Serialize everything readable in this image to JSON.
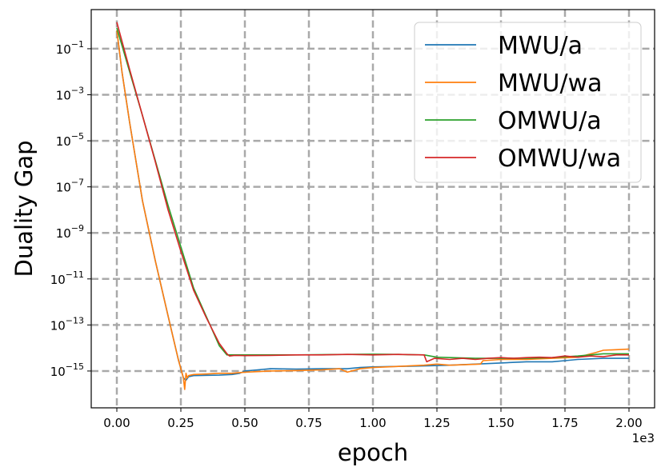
{
  "chart_data": {
    "type": "line",
    "xlabel": "epoch",
    "ylabel": "Duality Gap",
    "x_offset_label": "1e3",
    "xlim": [
      -0.1,
      2.1
    ],
    "ylim_log10": [
      -16.6,
      0.7
    ],
    "y_scale": "log",
    "grid": true,
    "legend_position": "top-right",
    "x_ticks": [
      {
        "value": 0.0,
        "label": "0.00"
      },
      {
        "value": 0.25,
        "label": "0.25"
      },
      {
        "value": 0.5,
        "label": "0.50"
      },
      {
        "value": 0.75,
        "label": "0.75"
      },
      {
        "value": 1.0,
        "label": "1.00"
      },
      {
        "value": 1.25,
        "label": "1.25"
      },
      {
        "value": 1.5,
        "label": "1.50"
      },
      {
        "value": 1.75,
        "label": "1.75"
      },
      {
        "value": 2.0,
        "label": "2.00"
      }
    ],
    "y_ticks": [
      {
        "exp": -1,
        "base": "10",
        "sup": "−1"
      },
      {
        "exp": -3,
        "base": "10",
        "sup": "−3"
      },
      {
        "exp": -5,
        "base": "10",
        "sup": "−5"
      },
      {
        "exp": -7,
        "base": "10",
        "sup": "−7"
      },
      {
        "exp": -9,
        "base": "10",
        "sup": "−9"
      },
      {
        "exp": -11,
        "base": "10",
        "sup": "−11"
      },
      {
        "exp": -13,
        "base": "10",
        "sup": "−13"
      },
      {
        "exp": -15,
        "base": "10",
        "sup": "−15"
      }
    ],
    "series": [
      {
        "name": "MWU/a",
        "color": "#1f77b4",
        "x": [
          0.0,
          0.02,
          0.05,
          0.1,
          0.15,
          0.2,
          0.24,
          0.26,
          0.27,
          0.28,
          0.3,
          0.4,
          0.45,
          0.48,
          0.5,
          0.55,
          0.6,
          0.7,
          0.8,
          0.9,
          0.95,
          1.0,
          1.1,
          1.2,
          1.3,
          1.4,
          1.5,
          1.6,
          1.7,
          1.75,
          1.8,
          1.9,
          2.0
        ],
        "log10_y": [
          -0.2,
          -2.0,
          -4.2,
          -7.6,
          -10.2,
          -12.6,
          -14.5,
          -15.3,
          -15.4,
          -15.25,
          -15.2,
          -15.18,
          -15.15,
          -15.1,
          -15.0,
          -14.95,
          -14.9,
          -14.92,
          -14.9,
          -14.9,
          -14.85,
          -14.82,
          -14.8,
          -14.78,
          -14.75,
          -14.7,
          -14.65,
          -14.6,
          -14.6,
          -14.55,
          -14.5,
          -14.45,
          -14.45
        ]
      },
      {
        "name": "MWU/wa",
        "color": "#ff7f0e",
        "x": [
          0.0,
          0.02,
          0.05,
          0.1,
          0.15,
          0.2,
          0.24,
          0.26,
          0.265,
          0.27,
          0.275,
          0.28,
          0.3,
          0.35,
          0.4,
          0.45,
          0.5,
          0.6,
          0.7,
          0.8,
          0.87,
          0.9,
          0.95,
          1.0,
          1.1,
          1.2,
          1.25,
          1.3,
          1.42,
          1.43,
          1.5,
          1.6,
          1.7,
          1.8,
          1.87,
          1.9,
          2.0
        ],
        "log10_y": [
          -0.2,
          -2.0,
          -4.2,
          -7.6,
          -10.2,
          -12.6,
          -14.5,
          -15.3,
          -15.8,
          -15.1,
          -15.3,
          -15.2,
          -15.15,
          -15.13,
          -15.1,
          -15.1,
          -15.05,
          -15.0,
          -14.98,
          -14.95,
          -14.9,
          -15.05,
          -14.9,
          -14.85,
          -14.8,
          -14.75,
          -14.7,
          -14.75,
          -14.7,
          -14.55,
          -14.5,
          -14.5,
          -14.45,
          -14.4,
          -14.2,
          -14.1,
          -14.05
        ]
      },
      {
        "name": "OMWU/a",
        "color": "#2ca02c",
        "x": [
          0.0,
          0.1,
          0.2,
          0.3,
          0.4,
          0.43,
          0.45,
          0.5,
          0.7,
          0.9,
          1.0,
          1.1,
          1.2,
          1.25,
          1.4,
          1.5,
          1.6,
          1.7,
          1.8,
          1.9,
          2.0
        ],
        "log10_y": [
          -0.1,
          -3.9,
          -7.8,
          -11.4,
          -13.9,
          -14.3,
          -14.3,
          -14.3,
          -14.3,
          -14.28,
          -14.27,
          -14.28,
          -14.3,
          -14.4,
          -14.45,
          -14.45,
          -14.45,
          -14.42,
          -14.35,
          -14.25,
          -14.25
        ]
      },
      {
        "name": "OMWU/wa",
        "color": "#d62728",
        "x": [
          0.0,
          0.05,
          0.1,
          0.15,
          0.2,
          0.25,
          0.3,
          0.35,
          0.4,
          0.43,
          0.44,
          0.46,
          0.5,
          0.6,
          0.7,
          0.8,
          0.9,
          1.0,
          1.1,
          1.2,
          1.21,
          1.24,
          1.3,
          1.35,
          1.4,
          1.45,
          1.5,
          1.55,
          1.6,
          1.65,
          1.7,
          1.75,
          1.8,
          1.85,
          1.9,
          1.95,
          2.0
        ],
        "log10_y": [
          0.15,
          -1.9,
          -3.9,
          -5.9,
          -8.0,
          -9.8,
          -11.5,
          -12.7,
          -13.8,
          -14.25,
          -14.35,
          -14.32,
          -14.33,
          -14.32,
          -14.3,
          -14.3,
          -14.28,
          -14.3,
          -14.28,
          -14.3,
          -14.6,
          -14.45,
          -14.5,
          -14.45,
          -14.5,
          -14.45,
          -14.42,
          -14.45,
          -14.42,
          -14.4,
          -14.42,
          -14.35,
          -14.4,
          -14.35,
          -14.38,
          -14.3,
          -14.3
        ]
      }
    ]
  }
}
